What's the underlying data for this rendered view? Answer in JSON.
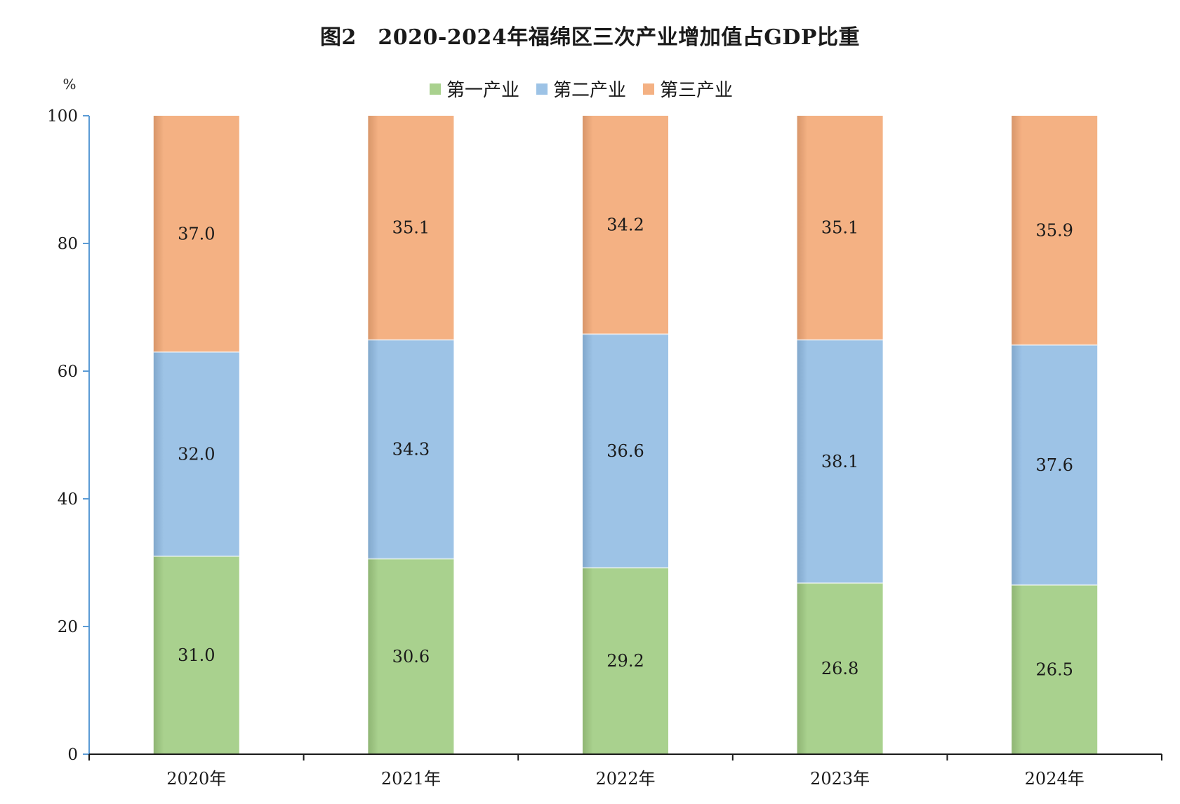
{
  "chart_data": {
    "type": "bar",
    "stacked": true,
    "title": "图2　2020-2024年福绵区三次产业增加值占GDP比重",
    "ylabel": "%",
    "ylim": [
      0,
      100
    ],
    "yticks": [
      0,
      20,
      40,
      60,
      80,
      100
    ],
    "categories": [
      "2020年",
      "2021年",
      "2022年",
      "2023年",
      "2024年"
    ],
    "series": [
      {
        "name": "第一产业",
        "color": "#a9d18e",
        "values": [
          31.0,
          30.6,
          29.2,
          26.8,
          26.5
        ]
      },
      {
        "name": "第二产业",
        "color": "#9dc3e6",
        "values": [
          32.0,
          34.3,
          36.6,
          38.1,
          37.6
        ]
      },
      {
        "name": "第三产业",
        "color": "#f4b183",
        "values": [
          37.0,
          35.1,
          34.2,
          35.1,
          35.9
        ]
      }
    ],
    "data_label_text": [
      [
        "31.0",
        "30.6",
        "29.2",
        "26.8",
        "26.5"
      ],
      [
        "32.0",
        "34.3",
        "36.6",
        "38.1",
        "37.6"
      ],
      [
        "37.0",
        "35.1",
        "34.2",
        "35.1",
        "35.9"
      ]
    ],
    "legend_position": "top",
    "grid": false,
    "axis_color": "#5b9bd5"
  }
}
